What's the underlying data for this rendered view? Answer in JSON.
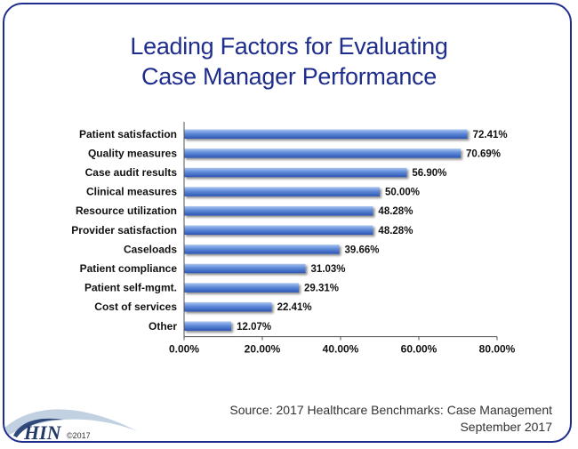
{
  "title_lines": [
    "Leading Factors for Evaluating",
    "Case Manager Performance"
  ],
  "source_lines": [
    "Source: 2017 Healthcare Benchmarks: Case Management",
    "September 2017"
  ],
  "logo": {
    "text": "HIN",
    "copyright": "©2017"
  },
  "colors": {
    "frame": "#1f2e8c",
    "bar_top": "#8fb0e6",
    "bar_mid": "#5a85d6",
    "bar_bottom": "#2f59b8",
    "title": "#1f2e8c"
  },
  "chart_data": {
    "type": "bar",
    "orientation": "horizontal",
    "title": "Leading Factors for Evaluating Case Manager Performance",
    "categories": [
      "Patient satisfaction",
      "Quality measures",
      "Case audit results",
      "Clinical measures",
      "Resource utilization",
      "Provider satisfaction",
      "Caseloads",
      "Patient compliance",
      "Patient self-mgmt.",
      "Cost of services",
      "Other"
    ],
    "values": [
      72.41,
      70.69,
      56.9,
      50.0,
      48.28,
      48.28,
      39.66,
      31.03,
      29.31,
      22.41,
      12.07
    ],
    "value_labels": [
      "72.41%",
      "70.69%",
      "56.90%",
      "50.00%",
      "48.28%",
      "48.28%",
      "39.66%",
      "31.03%",
      "29.31%",
      "22.41%",
      "12.07%"
    ],
    "xlim": [
      0,
      80
    ],
    "xticks": [
      0,
      20,
      40,
      60,
      80
    ],
    "xtick_labels": [
      "0.00%",
      "20.00%",
      "40.00%",
      "60.00%",
      "80.00%"
    ],
    "grid": false,
    "legend": "none"
  }
}
